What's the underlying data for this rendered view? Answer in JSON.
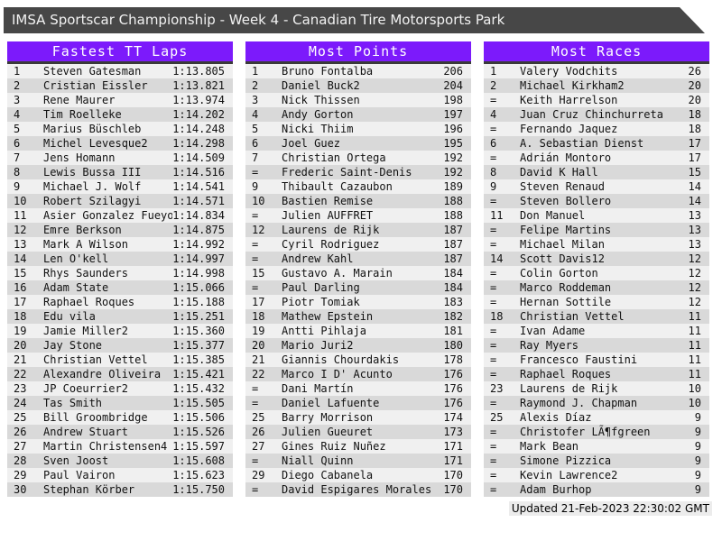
{
  "window": {
    "title": "IMSA Sportscar Championship - Week 4 - Canadian Tire Motorsports Park"
  },
  "footer": {
    "updated": "Updated 21-Feb-2023 22:30:02 GMT"
  },
  "colors": {
    "accent_purple": "#7c1afb",
    "titlebar_gray": "#474747",
    "row_odd": "#f0f0f0",
    "row_even": "#d9d9d9"
  },
  "tables": [
    {
      "heading": "Fastest TT Laps",
      "rows": [
        {
          "rank": "1",
          "name": "Steven Gatesman",
          "value": "1:13.805"
        },
        {
          "rank": "2",
          "name": "Cristian Eissler",
          "value": "1:13.821"
        },
        {
          "rank": "3",
          "name": "Rene Maurer",
          "value": "1:13.974"
        },
        {
          "rank": "4",
          "name": "Tim Roelleke",
          "value": "1:14.202"
        },
        {
          "rank": "5",
          "name": "Marius Büschleb",
          "value": "1:14.248"
        },
        {
          "rank": "6",
          "name": "Michel Levesque2",
          "value": "1:14.298"
        },
        {
          "rank": "7",
          "name": "Jens Homann",
          "value": "1:14.509"
        },
        {
          "rank": "8",
          "name": "Lewis Bussa III",
          "value": "1:14.516"
        },
        {
          "rank": "9",
          "name": "Michael J. Wolf",
          "value": "1:14.541"
        },
        {
          "rank": "10",
          "name": "Robert Szilagyi",
          "value": "1:14.571"
        },
        {
          "rank": "11",
          "name": "Asier Gonzalez Fueyo",
          "value": "1:14.834"
        },
        {
          "rank": "12",
          "name": "Emre Berkson",
          "value": "1:14.875"
        },
        {
          "rank": "13",
          "name": "Mark A Wilson",
          "value": "1:14.992"
        },
        {
          "rank": "14",
          "name": "Len O'kell",
          "value": "1:14.997"
        },
        {
          "rank": "15",
          "name": "Rhys Saunders",
          "value": "1:14.998"
        },
        {
          "rank": "16",
          "name": "Adam State",
          "value": "1:15.066"
        },
        {
          "rank": "17",
          "name": "Raphael Roques",
          "value": "1:15.188"
        },
        {
          "rank": "18",
          "name": "Edu vila",
          "value": "1:15.251"
        },
        {
          "rank": "19",
          "name": "Jamie Miller2",
          "value": "1:15.360"
        },
        {
          "rank": "20",
          "name": "Jay Stone",
          "value": "1:15.377"
        },
        {
          "rank": "21",
          "name": "Christian Vettel",
          "value": "1:15.385"
        },
        {
          "rank": "22",
          "name": "Alexandre Oliveira",
          "value": "1:15.421"
        },
        {
          "rank": "23",
          "name": "JP Coeurrier2",
          "value": "1:15.432"
        },
        {
          "rank": "24",
          "name": "Tas Smith",
          "value": "1:15.505"
        },
        {
          "rank": "25",
          "name": "Bill Groombridge",
          "value": "1:15.506"
        },
        {
          "rank": "26",
          "name": "Andrew Stuart",
          "value": "1:15.526"
        },
        {
          "rank": "27",
          "name": "Martin Christensen4",
          "value": "1:15.597"
        },
        {
          "rank": "28",
          "name": "Sven Joost",
          "value": "1:15.608"
        },
        {
          "rank": "29",
          "name": "Paul Vairon",
          "value": "1:15.623"
        },
        {
          "rank": "30",
          "name": "Stephan Körber",
          "value": "1:15.750"
        }
      ]
    },
    {
      "heading": "Most Points",
      "rows": [
        {
          "rank": "1",
          "name": "Bruno Fontalba",
          "value": "206"
        },
        {
          "rank": "2",
          "name": "Daniel Buck2",
          "value": "204"
        },
        {
          "rank": "3",
          "name": "Nick Thissen",
          "value": "198"
        },
        {
          "rank": "4",
          "name": "Andy Gorton",
          "value": "197"
        },
        {
          "rank": "5",
          "name": "Nicki Thiim",
          "value": "196"
        },
        {
          "rank": "6",
          "name": "Joel Guez",
          "value": "195"
        },
        {
          "rank": "7",
          "name": "Christian Ortega",
          "value": "192"
        },
        {
          "rank": "=",
          "name": "Frederic Saint-Denis",
          "value": "192"
        },
        {
          "rank": "9",
          "name": "Thibault Cazaubon",
          "value": "189"
        },
        {
          "rank": "10",
          "name": "Bastien Remise",
          "value": "188"
        },
        {
          "rank": "=",
          "name": "Julien AUFFRET",
          "value": "188"
        },
        {
          "rank": "12",
          "name": "Laurens de Rijk",
          "value": "187"
        },
        {
          "rank": "=",
          "name": "Cyril Rodriguez",
          "value": "187"
        },
        {
          "rank": "=",
          "name": "Andrew Kahl",
          "value": "187"
        },
        {
          "rank": "15",
          "name": "Gustavo A. Marain",
          "value": "184"
        },
        {
          "rank": "=",
          "name": "Paul Darling",
          "value": "184"
        },
        {
          "rank": "17",
          "name": "Piotr Tomiak",
          "value": "183"
        },
        {
          "rank": "18",
          "name": "Mathew Epstein",
          "value": "182"
        },
        {
          "rank": "19",
          "name": "Antti Pihlaja",
          "value": "181"
        },
        {
          "rank": "20",
          "name": "Mario Juri2",
          "value": "180"
        },
        {
          "rank": "21",
          "name": "Giannis Chourdakis",
          "value": "178"
        },
        {
          "rank": "22",
          "name": "Marco I D' Acunto",
          "value": "176"
        },
        {
          "rank": "=",
          "name": "Dani Martín",
          "value": "176"
        },
        {
          "rank": "=",
          "name": "Daniel Lafuente",
          "value": "176"
        },
        {
          "rank": "25",
          "name": "Barry Morrison",
          "value": "174"
        },
        {
          "rank": "26",
          "name": "Julien Gueuret",
          "value": "173"
        },
        {
          "rank": "27",
          "name": "Gines Ruiz Nuñez",
          "value": "171"
        },
        {
          "rank": "=",
          "name": "Niall Quinn",
          "value": "171"
        },
        {
          "rank": "29",
          "name": "Diego Cabanela",
          "value": "170"
        },
        {
          "rank": "=",
          "name": "David Espigares Morales",
          "value": "170"
        }
      ]
    },
    {
      "heading": "Most Races",
      "rows": [
        {
          "rank": "1",
          "name": "Valery Vodchits",
          "value": "26"
        },
        {
          "rank": "2",
          "name": "Michael Kirkham2",
          "value": "20"
        },
        {
          "rank": "=",
          "name": "Keith Harrelson",
          "value": "20"
        },
        {
          "rank": "4",
          "name": "Juan Cruz Chinchurreta",
          "value": "18"
        },
        {
          "rank": "=",
          "name": "Fernando Jaquez",
          "value": "18"
        },
        {
          "rank": "6",
          "name": "A. Sebastian Dienst",
          "value": "17"
        },
        {
          "rank": "=",
          "name": "Adrián Montoro",
          "value": "17"
        },
        {
          "rank": "8",
          "name": "David K Hall",
          "value": "15"
        },
        {
          "rank": "9",
          "name": "Steven Renaud",
          "value": "14"
        },
        {
          "rank": "=",
          "name": "Steven Bollero",
          "value": "14"
        },
        {
          "rank": "11",
          "name": "Don Manuel",
          "value": "13"
        },
        {
          "rank": "=",
          "name": "Felipe Martins",
          "value": "13"
        },
        {
          "rank": "=",
          "name": "Michael Milan",
          "value": "13"
        },
        {
          "rank": "14",
          "name": "Scott Davis12",
          "value": "12"
        },
        {
          "rank": "=",
          "name": "Colin Gorton",
          "value": "12"
        },
        {
          "rank": "=",
          "name": "Marco Roddeman",
          "value": "12"
        },
        {
          "rank": "=",
          "name": "Hernan Sottile",
          "value": "12"
        },
        {
          "rank": "18",
          "name": "Christian Vettel",
          "value": "11"
        },
        {
          "rank": "=",
          "name": "Ivan Adame",
          "value": "11"
        },
        {
          "rank": "=",
          "name": "Ray Myers",
          "value": "11"
        },
        {
          "rank": "=",
          "name": "Francesco Faustini",
          "value": "11"
        },
        {
          "rank": "=",
          "name": "Raphael Roques",
          "value": "11"
        },
        {
          "rank": "23",
          "name": "Laurens de Rijk",
          "value": "10"
        },
        {
          "rank": "=",
          "name": "Raymond J. Chapman",
          "value": "10"
        },
        {
          "rank": "25",
          "name": "Alexis Díaz",
          "value": "9"
        },
        {
          "rank": "=",
          "name": "Christofer LÃ¶fgreen",
          "value": "9"
        },
        {
          "rank": "=",
          "name": "Mark Bean",
          "value": "9"
        },
        {
          "rank": "=",
          "name": "Simone Pizzica",
          "value": "9"
        },
        {
          "rank": "=",
          "name": "Kevin Lawrence2",
          "value": "9"
        },
        {
          "rank": "=",
          "name": "Adam Burhop",
          "value": "9"
        }
      ]
    }
  ]
}
